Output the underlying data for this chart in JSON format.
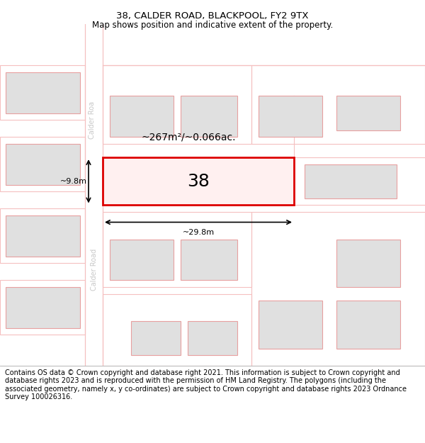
{
  "title": "38, CALDER ROAD, BLACKPOOL, FY2 9TX",
  "subtitle": "Map shows position and indicative extent of the property.",
  "footer": "Contains OS data © Crown copyright and database right 2021. This information is subject to Crown copyright and database rights 2023 and is reproduced with the permission of HM Land Registry. The polygons (including the associated geometry, namely x, y co-ordinates) are subject to Crown copyright and database rights 2023 Ordnance Survey 100026316.",
  "bg_color": "#ffffff",
  "map_bg": "#f0f0f0",
  "road_color": "#f5c0c0",
  "road_fill": "#ffffff",
  "building_fill": "#e0e0e0",
  "building_edge": "#e8a0a0",
  "highlight_fill": "#fff0f0",
  "highlight_edge": "#dd0000",
  "road_label_color": "#c8c8c8",
  "area_text": "~267m²/~0.066ac.",
  "plot_number": "38",
  "dim_width": "~29.8m",
  "dim_height": "~9.8m",
  "title_fontsize": 9.5,
  "subtitle_fontsize": 8.5,
  "footer_fontsize": 7.0
}
